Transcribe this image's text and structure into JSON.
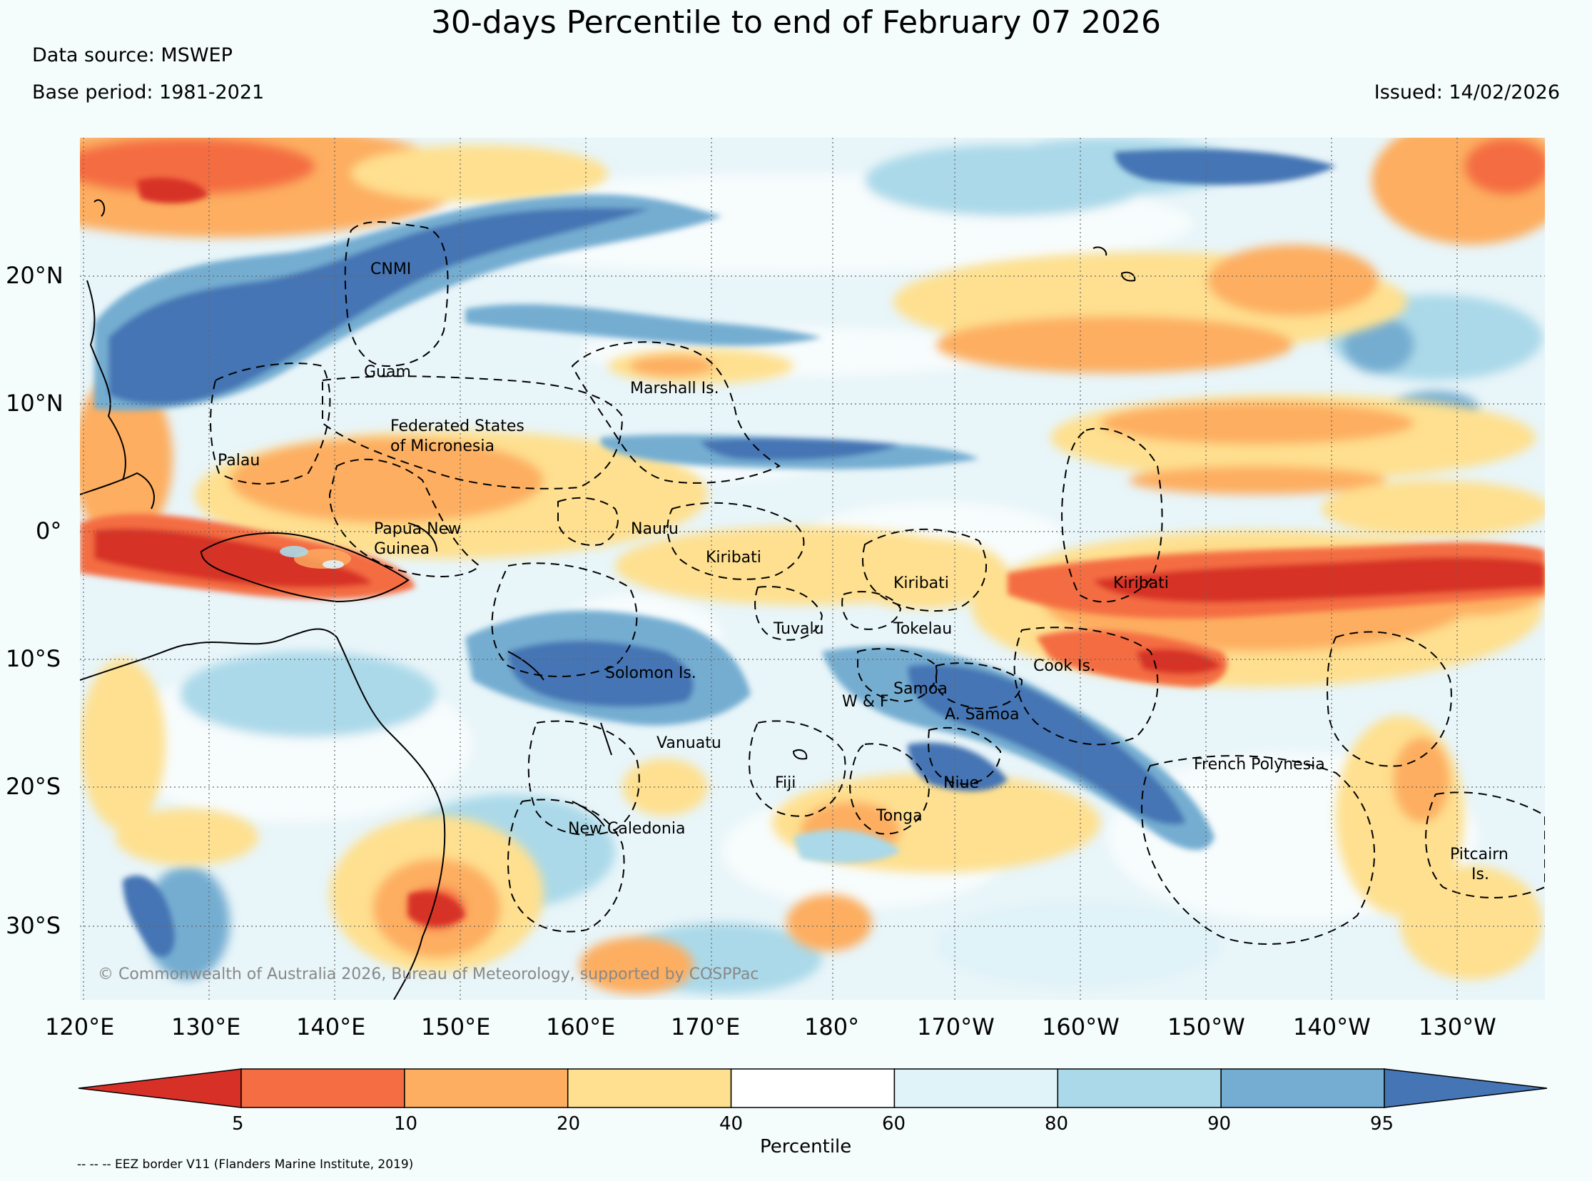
{
  "title": "30-days Percentile to end of February 07 2026",
  "data_source": "Data source: MSWEP",
  "base_period": "Base period: 1981-2021",
  "issued": "Issued: 14/02/2026",
  "copyright": "© Commonwealth of Australia 2026, Bureau of Meteorology, supported by COSPPac",
  "eez_note": "-- -- -- EEZ border V11 (Flanders Marine Institute, 2019)",
  "lat_labels": [
    "20°N",
    "10°N",
    "0°",
    "10°S",
    "20°S",
    "30°S"
  ],
  "lon_labels": [
    "120°E",
    "130°E",
    "140°E",
    "150°E",
    "160°E",
    "170°E",
    "180°",
    "170°W",
    "160°W",
    "150°W",
    "140°W",
    "130°W"
  ],
  "colorbar": {
    "label": "Percentile",
    "ticks": [
      "5",
      "10",
      "20",
      "40",
      "60",
      "80",
      "90",
      "95"
    ],
    "colors": [
      "#d73027",
      "#f46d43",
      "#fdae61",
      "#fee090",
      "#ffffff",
      "#e0f3f8",
      "#abd9e9",
      "#74add1",
      "#4575b4"
    ]
  },
  "country_labels": {
    "cnmi": "CNMI",
    "guam": "Guam",
    "marshall": "Marshall Is.",
    "fsm_1": "Federated States",
    "fsm_2": "of Micronesia",
    "palau": "Palau",
    "png_1": "Papua New",
    "png_2": "Guinea",
    "nauru": "Nauru",
    "kiribati_w": "Kiribati",
    "kiribati_c": "Kiribati",
    "kiribati_e": "Kiribati",
    "tuvalu": "Tuvalu",
    "tokelau": "Tokelau",
    "solomon": "Solomon Is.",
    "cook": "Cook Is.",
    "samoa": "Samoa",
    "wf": "W & F",
    "asamoa": "A. Samoa",
    "vanuatu": "Vanuatu",
    "fiji": "Fiji",
    "niue": "Niue",
    "tonga": "Tonga",
    "french_poly": "French Polynesia",
    "new_caledonia": "New Caledonia",
    "pitcairn_1": "Pitcairn",
    "pitcairn_2": "Is."
  }
}
